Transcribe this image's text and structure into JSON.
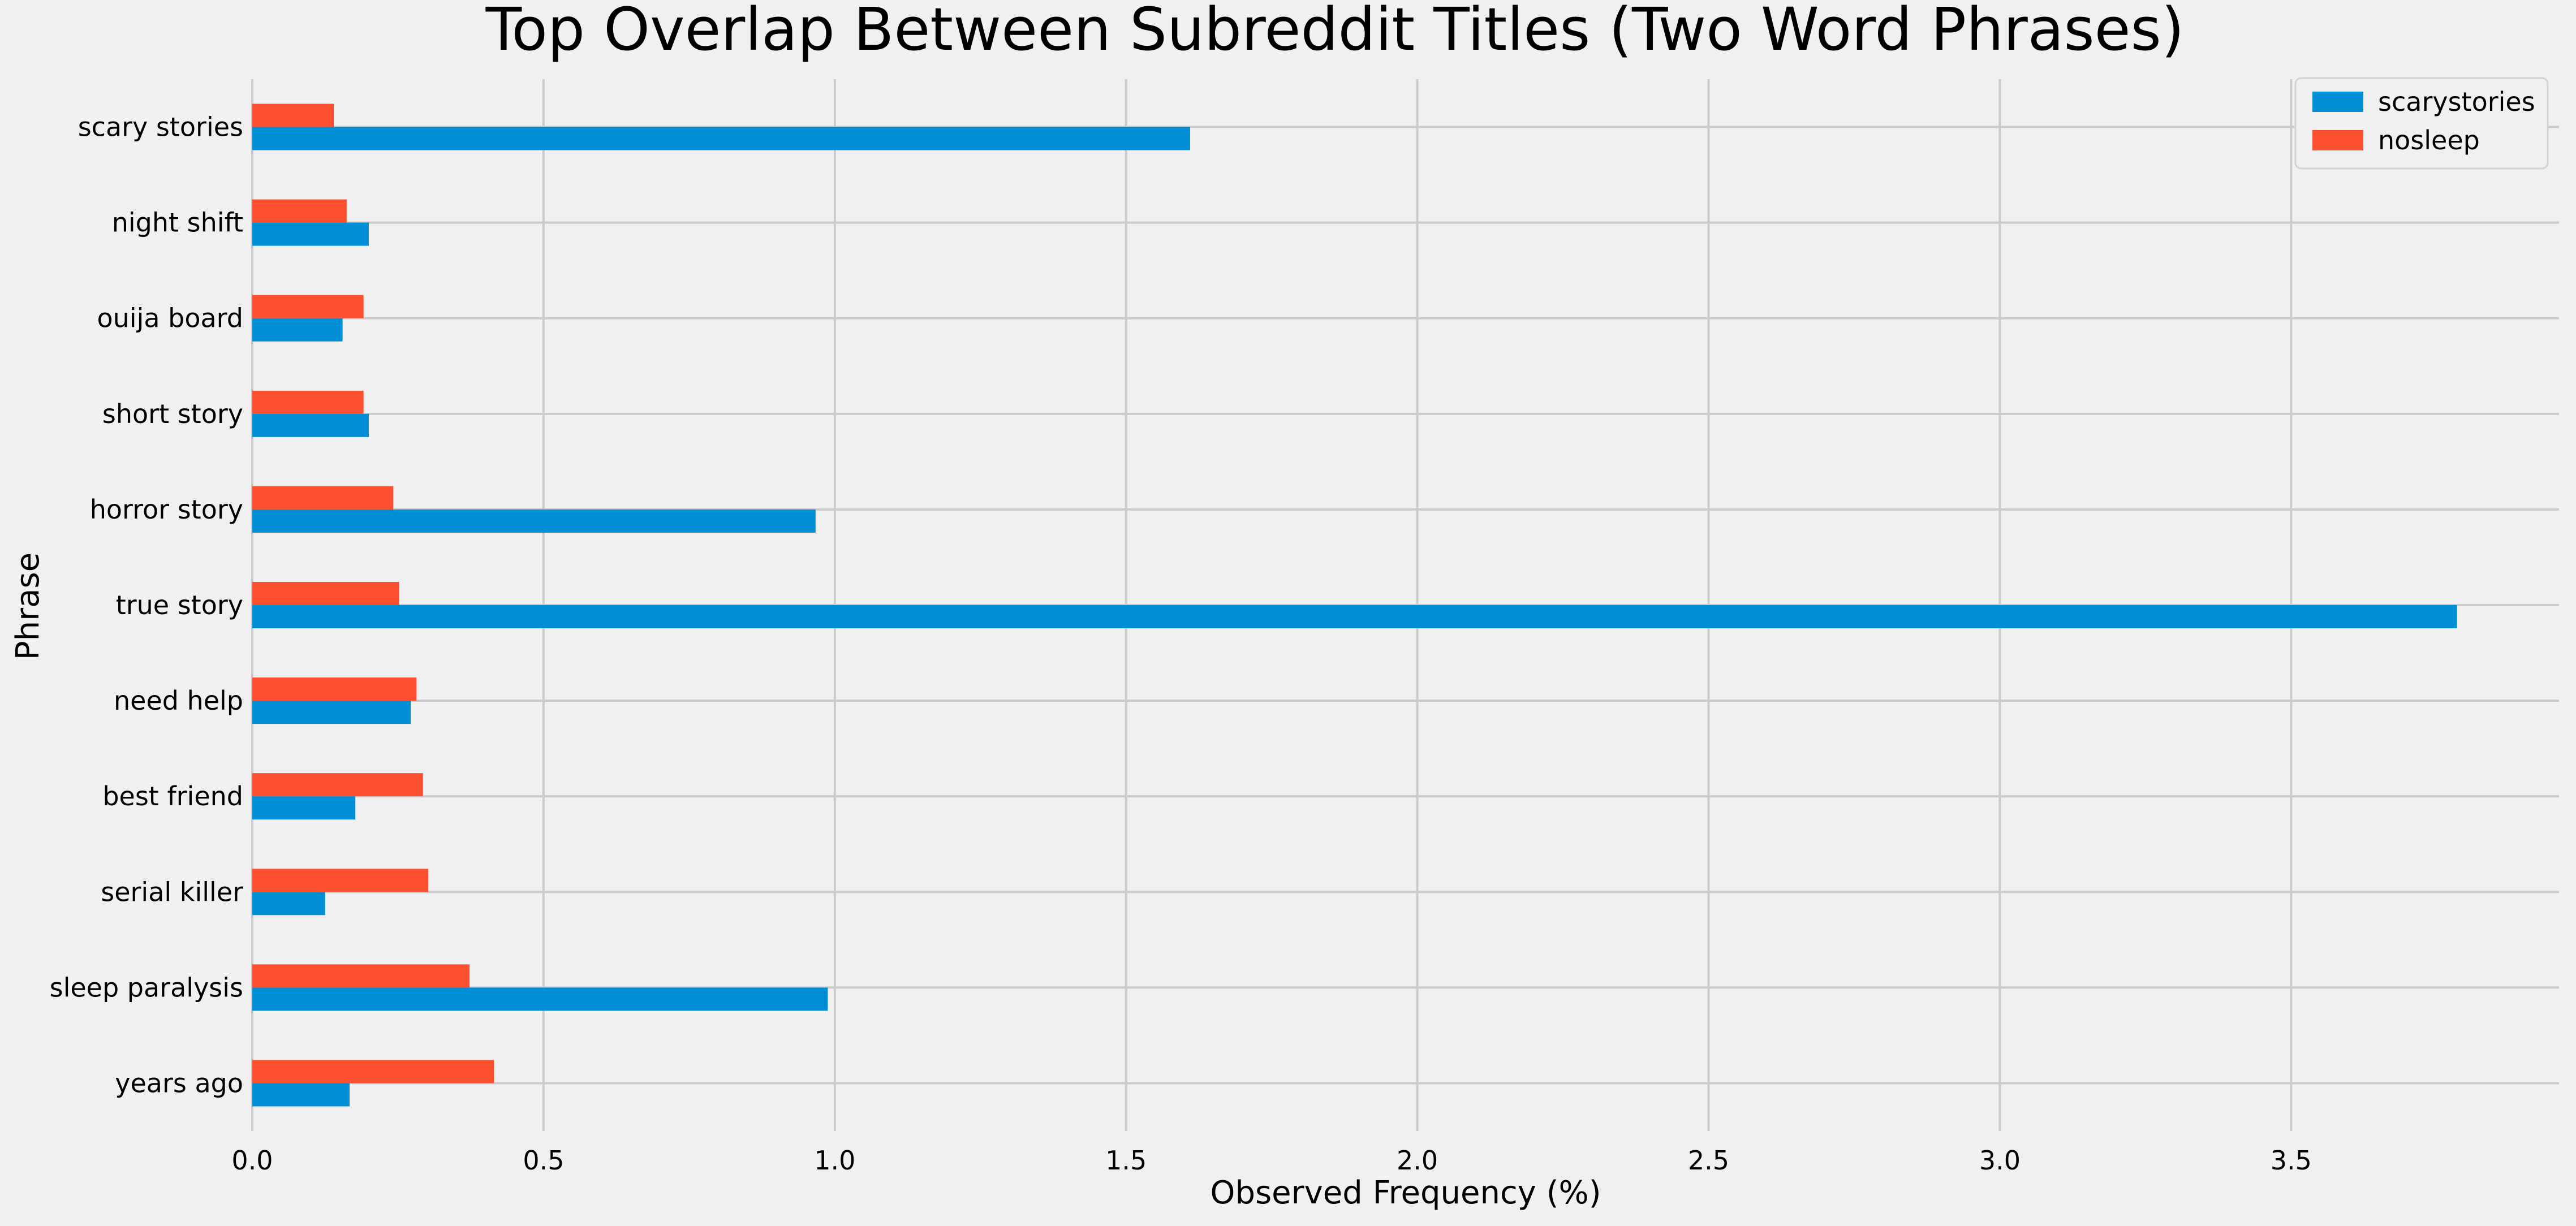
{
  "chart_data": {
    "type": "bar",
    "orientation": "horizontal",
    "title": "Top Overlap Between Subreddit Titles (Two Word Phrases)",
    "xlabel": "Observed Frequency (%)",
    "ylabel": "Phrase",
    "xlim": [
      0,
      3.96
    ],
    "xticks": [
      0.0,
      0.5,
      1.0,
      1.5,
      2.0,
      2.5,
      3.0,
      3.5
    ],
    "xtick_labels": [
      "0.0",
      "0.5",
      "1.0",
      "1.5",
      "2.0",
      "2.5",
      "3.0",
      "3.5"
    ],
    "grid": true,
    "legend_position": "top-right",
    "categories": [
      "scary stories",
      "night shift",
      "ouija board",
      "short story",
      "horror story",
      "true story",
      "need help",
      "best friend",
      "serial killer",
      "sleep paralysis",
      "years ago"
    ],
    "series": [
      {
        "name": "scarystories",
        "color": "#008fd5",
        "values": [
          1.61,
          0.2,
          0.155,
          0.2,
          0.967,
          3.785,
          0.272,
          0.177,
          0.125,
          0.988,
          0.167
        ]
      },
      {
        "name": "nosleep",
        "color": "#fc4f30",
        "values": [
          0.14,
          0.162,
          0.191,
          0.191,
          0.242,
          0.252,
          0.282,
          0.293,
          0.302,
          0.373,
          0.415
        ]
      }
    ]
  }
}
